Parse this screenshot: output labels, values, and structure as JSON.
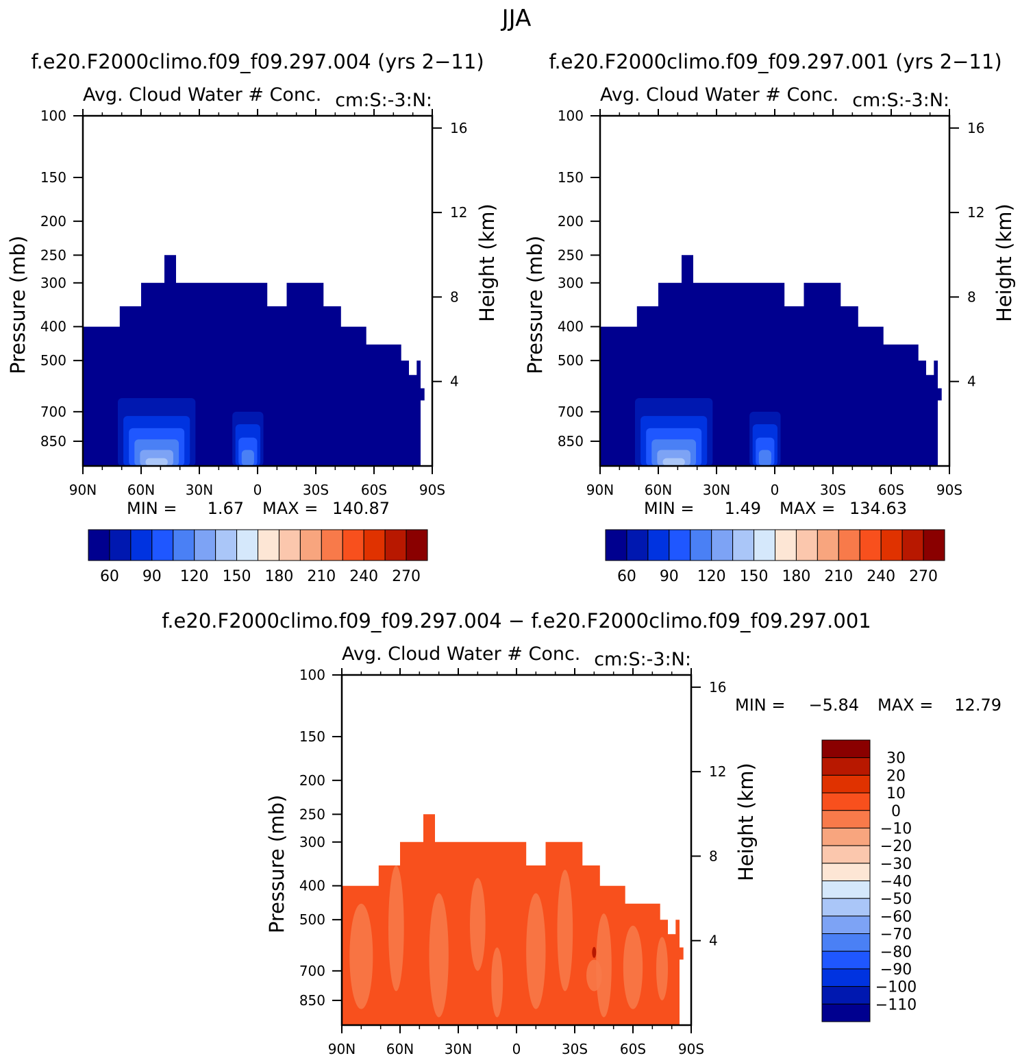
{
  "figure": {
    "season": "JJA",
    "left_title": "f.e20.F2000climo.f09_f09.297.004 (yrs 2−11)",
    "right_title": "f.e20.F2000climo.f09_f09.297.001 (yrs 2−11)",
    "diff_title": "f.e20.F2000climo.f09_f09.297.004 − f.e20.F2000climo.f09_f09.297.001"
  },
  "chart_data": [
    {
      "type": "heatmap",
      "panel": "left",
      "title": "Avg. Cloud Water # Conc.",
      "subtitle": "cm:S:-3:N:",
      "ylabel": "Pressure (mb)",
      "ylabel_right": "Height (km)",
      "x_ticks": [
        "90N",
        "60N",
        "30N",
        "0",
        "30S",
        "60S",
        "90S"
      ],
      "x_range": [
        90,
        -90
      ],
      "y_ticks": [
        100,
        150,
        200,
        250,
        300,
        400,
        500,
        700,
        850
      ],
      "y_range": [
        100,
        1000
      ],
      "y_scale": "log",
      "y_right_ticks": [
        16,
        12,
        8,
        4
      ],
      "min_label": "MIN =",
      "min_value": "1.67",
      "max_label": "MAX =",
      "max_value": "140.87",
      "cloud_top": [
        [
          90,
          400
        ],
        [
          71,
          400
        ],
        [
          71,
          350
        ],
        [
          60,
          350
        ],
        [
          60,
          300
        ],
        [
          48,
          300
        ],
        [
          48,
          250
        ],
        [
          42,
          250
        ],
        [
          42,
          300
        ],
        [
          26,
          300
        ],
        [
          26,
          300
        ],
        [
          24,
          300
        ],
        [
          24,
          300
        ],
        [
          -5,
          300
        ],
        [
          -5,
          350
        ],
        [
          -15,
          350
        ],
        [
          -15,
          300
        ],
        [
          -34,
          300
        ],
        [
          -34,
          350
        ],
        [
          -43,
          350
        ],
        [
          -43,
          400
        ],
        [
          -56,
          400
        ],
        [
          -56,
          450
        ],
        [
          -74,
          450
        ],
        [
          -74,
          500
        ],
        [
          -78,
          500
        ],
        [
          -78,
          550
        ],
        [
          -82,
          550
        ],
        [
          -82,
          500
        ],
        [
          -84,
          500
        ],
        [
          -84,
          600
        ],
        [
          -86,
          600
        ],
        [
          -86,
          650
        ],
        [
          -84,
          650
        ],
        [
          -84,
          900
        ]
      ],
      "colorbar": {
        "colors": [
          "#00008f",
          "#0018b0",
          "#0033e0",
          "#1f57ff",
          "#4a80f5",
          "#7da3f5",
          "#aac6f8",
          "#d5e8fb",
          "#fde6d5",
          "#fbc7ad",
          "#f8a57e",
          "#f87a4a",
          "#f8501d",
          "#e03200",
          "#b81800",
          "#8a0000"
        ],
        "labels": [
          "60",
          "90",
          "120",
          "150",
          "180",
          "210",
          "240",
          "270"
        ]
      }
    },
    {
      "type": "heatmap",
      "panel": "right",
      "title": "Avg. Cloud Water # Conc.",
      "subtitle": "cm:S:-3:N:",
      "ylabel": "Pressure (mb)",
      "ylabel_right": "Height (km)",
      "x_ticks": [
        "90N",
        "60N",
        "30N",
        "0",
        "30S",
        "60S",
        "90S"
      ],
      "x_range": [
        90,
        -90
      ],
      "y_ticks": [
        100,
        150,
        200,
        250,
        300,
        400,
        500,
        700,
        850
      ],
      "y_range": [
        100,
        1000
      ],
      "y_scale": "log",
      "y_right_ticks": [
        16,
        12,
        8,
        4
      ],
      "min_label": "MIN =",
      "min_value": "1.49",
      "max_label": "MAX =",
      "max_value": "134.63",
      "colorbar": {
        "colors": [
          "#00008f",
          "#0018b0",
          "#0033e0",
          "#1f57ff",
          "#4a80f5",
          "#7da3f5",
          "#aac6f8",
          "#d5e8fb",
          "#fde6d5",
          "#fbc7ad",
          "#f8a57e",
          "#f87a4a",
          "#f8501d",
          "#e03200",
          "#b81800",
          "#8a0000"
        ],
        "labels": [
          "60",
          "90",
          "120",
          "150",
          "180",
          "210",
          "240",
          "270"
        ]
      }
    },
    {
      "type": "heatmap",
      "panel": "difference",
      "title": "Avg. Cloud Water # Conc.",
      "subtitle": "cm:S:-3:N:",
      "ylabel": "Pressure (mb)",
      "ylabel_right": "Height (km)",
      "x_ticks": [
        "90N",
        "60N",
        "30N",
        "0",
        "30S",
        "60S",
        "90S"
      ],
      "x_range": [
        90,
        -90
      ],
      "y_ticks": [
        100,
        150,
        200,
        250,
        300,
        400,
        500,
        700,
        850
      ],
      "y_range": [
        100,
        1000
      ],
      "y_scale": "log",
      "y_right_ticks": [
        16,
        12,
        8,
        4
      ],
      "min_label": "MIN =",
      "min_value": "−5.84",
      "max_label": "MAX =",
      "max_value": "12.79",
      "colorbar": {
        "colors": [
          "#8a0000",
          "#b81800",
          "#e03200",
          "#f8501d",
          "#f87a4a",
          "#f8a57e",
          "#fbc7ad",
          "#fde6d5",
          "#d5e8fb",
          "#aac6f8",
          "#7da3f5",
          "#4a80f5",
          "#1f57ff",
          "#0033e0",
          "#0018b0",
          "#00008f"
        ],
        "labels": [
          "30",
          "20",
          "10",
          "0",
          "−10",
          "−20",
          "−30",
          "−40",
          "−50",
          "−60",
          "−70",
          "−80",
          "−90",
          "−100",
          "−110"
        ]
      }
    }
  ]
}
